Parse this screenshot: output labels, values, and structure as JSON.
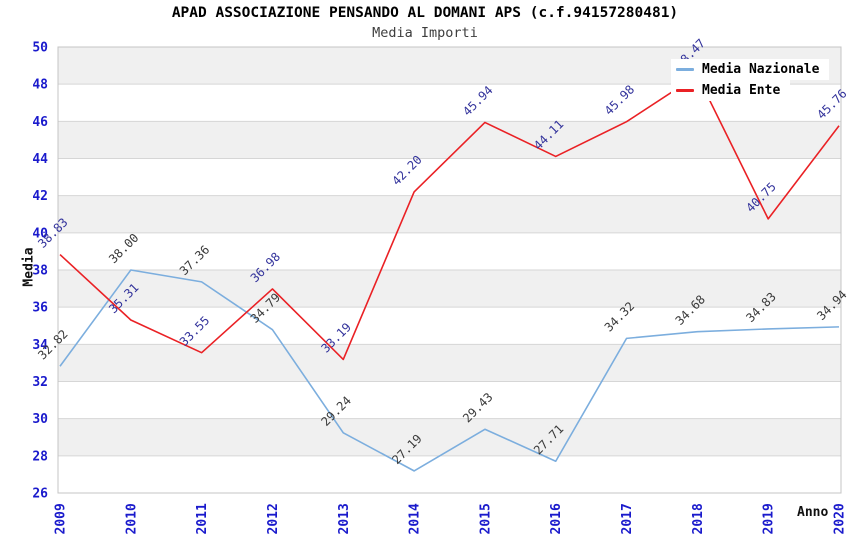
{
  "header": {
    "title": "APAD ASSOCIAZIONE PENSANDO AL DOMANI APS (c.f.94157280481)",
    "subtitle": "Media Importi"
  },
  "chart_data": {
    "type": "line",
    "title": "APAD ASSOCIAZIONE PENSANDO AL DOMANI APS (c.f.94157280481)",
    "subtitle": "Media Importi",
    "xlabel": "Anno",
    "ylabel": "Media",
    "x": [
      "2009",
      "2010",
      "2011",
      "2012",
      "2013",
      "2014",
      "2015",
      "2016",
      "2017",
      "2018",
      "2019",
      "2020"
    ],
    "ylim": [
      26,
      50
    ],
    "ytick_step": 2,
    "grid": true,
    "band_fill": "#f0f0f0",
    "grid_color": "#d6d6d6",
    "border_color": "#c4c4c4",
    "tick_color": "#1a1acc",
    "legend_position": "top-right",
    "series": [
      {
        "name": "Media Nazionale",
        "color": "#7caede",
        "label_color": "#3a3a3a",
        "values": [
          32.82,
          38.0,
          37.36,
          34.79,
          29.24,
          27.19,
          29.43,
          27.71,
          34.32,
          34.68,
          34.83,
          34.94
        ]
      },
      {
        "name": "Media Ente",
        "color": "#ea2125",
        "label_color": "#32329b",
        "values": [
          38.83,
          35.31,
          33.55,
          36.98,
          33.19,
          42.2,
          45.94,
          44.11,
          45.98,
          48.47,
          40.75,
          45.76
        ]
      }
    ]
  }
}
